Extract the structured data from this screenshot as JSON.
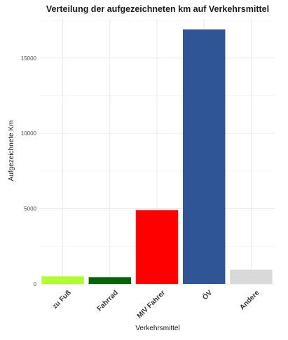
{
  "chart_data": {
    "type": "bar",
    "title": "Verteilung der aufgezeichneten km auf Verkehrsmittel",
    "xlabel": "Verkehrsmittel",
    "ylabel": "Aufgezeichnete Km",
    "categories": [
      "zu Fuß",
      "Fahrrad",
      "MIV Fahrer",
      "ÖV",
      "Andere"
    ],
    "values": [
      500,
      450,
      4900,
      16900,
      950
    ],
    "colors": [
      "#ADFF2F",
      "#006400",
      "#FF0000",
      "#2F5597",
      "#D9D9D9"
    ],
    "ylim": [
      0,
      17600
    ],
    "yticks": [
      0,
      5000,
      10000,
      15000
    ],
    "ytick_labels": [
      "0",
      "5000",
      "10000",
      "15000"
    ],
    "grid": true,
    "legend": "none"
  }
}
